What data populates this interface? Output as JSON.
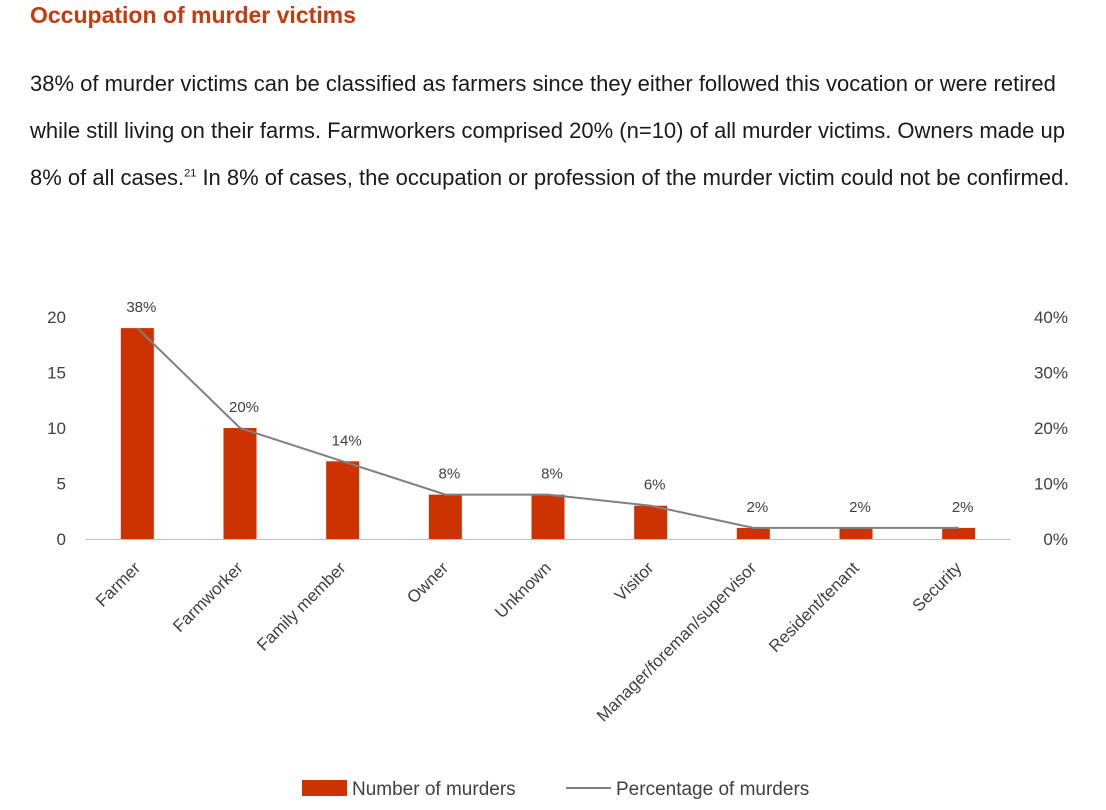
{
  "heading": "Occupation of murder victims",
  "paragraph": {
    "text_before_footnote": "38% of murder victims can be classified as farmers since they either followed this vocation or were retired while still living on their farms. Farmworkers comprised 20% (n=10) of all murder victims. Owners made up 8% of all cases.",
    "footnote": "21",
    "text_after_footnote": " In 8% of cases, the occupation or profession of the murder victim could not be confirmed."
  },
  "colors": {
    "bar": "#cc3300",
    "line": "#808080",
    "title": "#c8390d"
  },
  "chart_data": {
    "type": "bar",
    "title": "",
    "categories": [
      "Farmer",
      "Farmworker",
      "Family member",
      "Owner",
      "Unknown",
      "Visitor",
      "Manager/foreman/supervisor",
      "Resident/tenant",
      "Security"
    ],
    "series": [
      {
        "name": "Number of murders",
        "kind": "bar",
        "axis": "left",
        "values": [
          19,
          10,
          7,
          4,
          4,
          3,
          1,
          1,
          1
        ]
      },
      {
        "name": "Percentage of murders",
        "kind": "line",
        "axis": "right",
        "values": [
          38,
          20,
          14,
          8,
          8,
          6,
          2,
          2,
          2
        ],
        "labels": [
          "38%",
          "20%",
          "14%",
          "8%",
          "8%",
          "6%",
          "2%",
          "2%",
          "2%"
        ]
      }
    ],
    "left_axis": {
      "ylim": [
        0,
        20
      ],
      "ticks": [
        "0",
        "5",
        "10",
        "15",
        "20"
      ]
    },
    "right_axis": {
      "ylim": [
        0,
        40
      ],
      "ticks": [
        "0%",
        "10%",
        "20%",
        "30%",
        "40%"
      ]
    },
    "xlabel": "",
    "ylabel": "",
    "grid": false,
    "legend_position": "bottom"
  }
}
